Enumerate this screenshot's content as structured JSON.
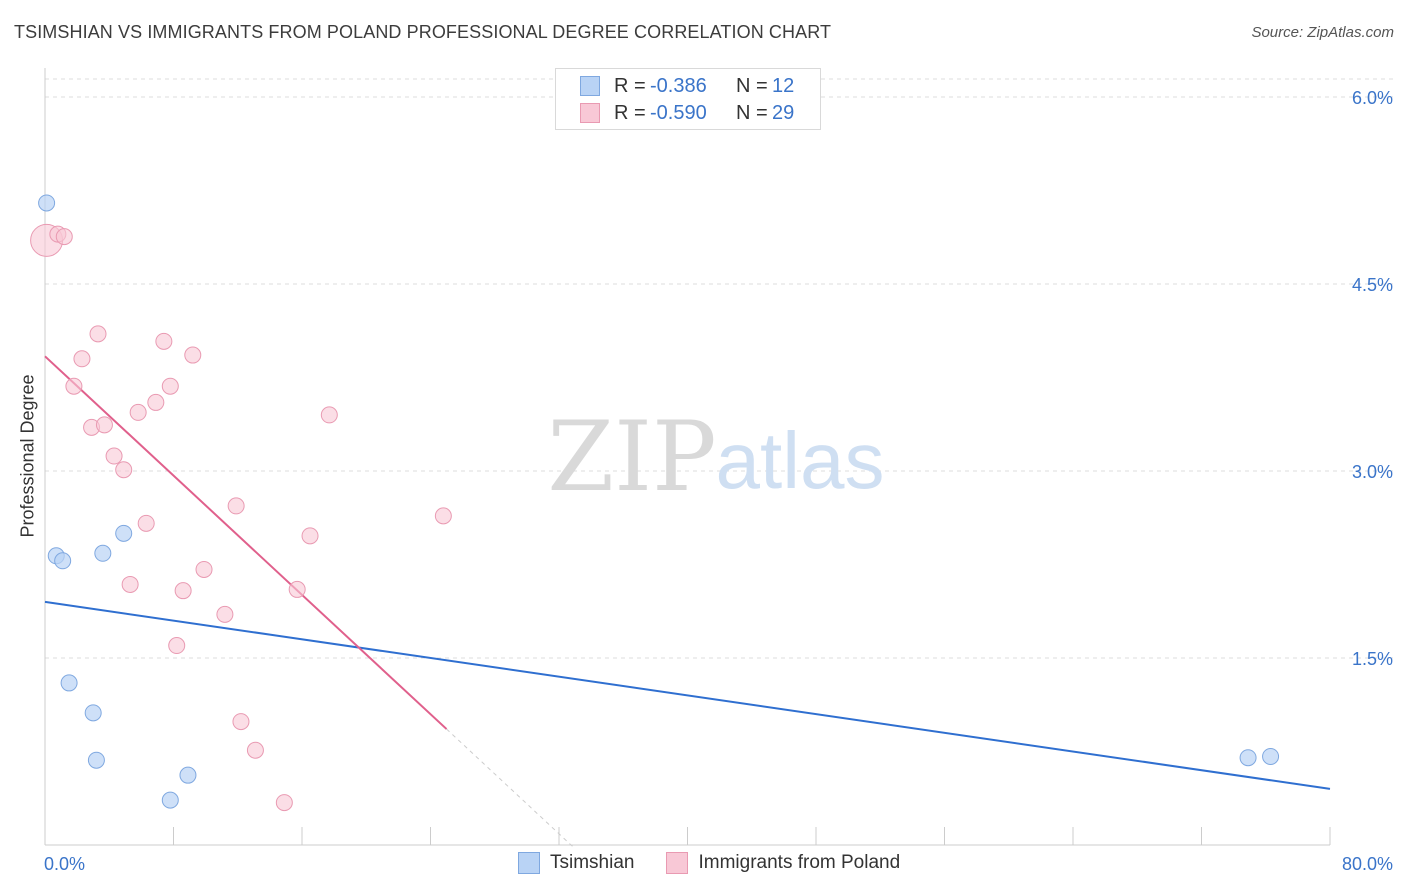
{
  "title": "TSIMSHIAN VS IMMIGRANTS FROM POLAND PROFESSIONAL DEGREE CORRELATION CHART",
  "source": "Source: ZipAtlas.com",
  "watermark": {
    "zip": "ZIP",
    "atlas": "atlas"
  },
  "legend": {
    "rows": [
      {
        "r_label": "R =",
        "r_value": "-0.386",
        "n_label": "N =",
        "n_value": "12"
      },
      {
        "r_label": "R =",
        "r_value": "-0.590",
        "n_label": "N =",
        "n_value": "29"
      }
    ]
  },
  "colors": {
    "blue_fill": "#b9d3f5",
    "blue_stroke": "#7fa8e0",
    "blue_line": "#2f6fd0",
    "pink_fill": "#f8c8d6",
    "pink_stroke": "#e99ab2",
    "pink_line": "#e0608c",
    "axis_text": "#3a74c9",
    "grid": "#dddddd"
  },
  "chart_data": {
    "type": "scatter",
    "title": "TSIMSHIAN VS IMMIGRANTS FROM POLAND PROFESSIONAL DEGREE CORRELATION CHART",
    "xlabel": "",
    "ylabel": "Professional Degree",
    "xlim": [
      0,
      80
    ],
    "ylim": [
      0,
      6.3
    ],
    "x_tick_labels": [
      "0.0%",
      "80.0%"
    ],
    "y_ticks": [
      1.5,
      3.0,
      4.5,
      6.0
    ],
    "y_tick_labels": [
      "1.5%",
      "3.0%",
      "4.5%",
      "6.0%"
    ],
    "grid": true,
    "legend_position": "top-center",
    "series": [
      {
        "name": "Tsimshian",
        "color": "blue",
        "r": -0.386,
        "n": 12,
        "points": [
          [
            0.1,
            5.15
          ],
          [
            0.7,
            2.32
          ],
          [
            1.1,
            2.28
          ],
          [
            1.5,
            1.3
          ],
          [
            3.0,
            1.06
          ],
          [
            3.2,
            0.68
          ],
          [
            3.6,
            2.34
          ],
          [
            4.9,
            2.5
          ],
          [
            7.8,
            0.36
          ],
          [
            8.9,
            0.56
          ],
          [
            74.9,
            0.7
          ],
          [
            76.3,
            0.71
          ]
        ],
        "trend": {
          "x1": 0,
          "y1": 1.95,
          "x2": 80,
          "y2": 0.45
        }
      },
      {
        "name": "Immigrants from Poland",
        "color": "pink",
        "r": -0.59,
        "n": 29,
        "points": [
          [
            0.1,
            4.85
          ],
          [
            0.8,
            4.9
          ],
          [
            1.2,
            4.88
          ],
          [
            3.3,
            4.1
          ],
          [
            2.3,
            3.9
          ],
          [
            1.8,
            3.68
          ],
          [
            2.9,
            3.35
          ],
          [
            3.7,
            3.37
          ],
          [
            4.3,
            3.12
          ],
          [
            4.9,
            3.01
          ],
          [
            5.8,
            3.47
          ],
          [
            6.9,
            3.55
          ],
          [
            7.4,
            4.04
          ],
          [
            7.8,
            3.68
          ],
          [
            9.2,
            3.93
          ],
          [
            6.3,
            2.58
          ],
          [
            5.3,
            2.09
          ],
          [
            8.6,
            2.04
          ],
          [
            9.9,
            2.21
          ],
          [
            11.2,
            1.85
          ],
          [
            8.2,
            1.6
          ],
          [
            11.9,
            2.72
          ],
          [
            16.5,
            2.48
          ],
          [
            15.7,
            2.05
          ],
          [
            17.7,
            3.45
          ],
          [
            24.8,
            2.64
          ],
          [
            12.2,
            0.99
          ],
          [
            13.1,
            0.76
          ],
          [
            14.9,
            0.34
          ]
        ],
        "trend": {
          "x1": 0,
          "y1": 3.92,
          "x2": 25,
          "y2": 0.93
        },
        "trend_extension": {
          "x1": 25,
          "y1": 0.93,
          "x2": 33,
          "y2": -0.03
        }
      }
    ]
  },
  "bottom_legend": {
    "items": [
      {
        "label": "Tsimshian"
      },
      {
        "label": "Immigrants from Poland"
      }
    ]
  }
}
